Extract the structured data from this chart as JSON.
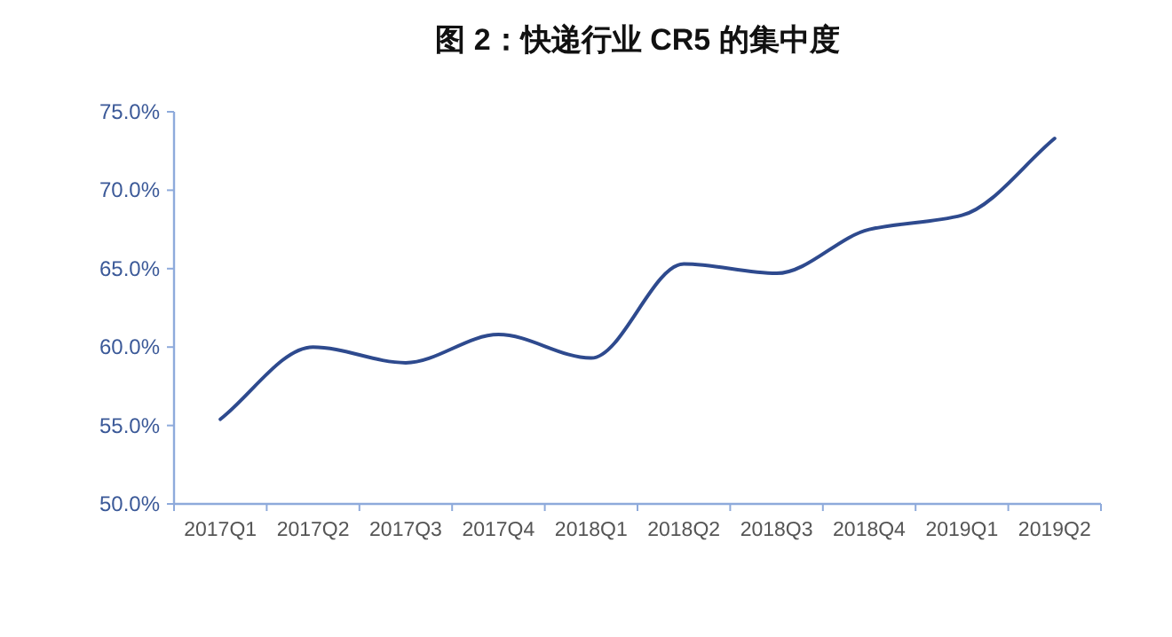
{
  "chart_data": {
    "type": "line",
    "title": "图 2：快递行业 CR5 的集中度",
    "categories": [
      "2017Q1",
      "2017Q2",
      "2017Q3",
      "2017Q4",
      "2018Q1",
      "2018Q2",
      "2018Q3",
      "2018Q4",
      "2019Q1",
      "2019Q2"
    ],
    "series": [
      {
        "color": "#2e4a8e",
        "values": [
          55.4,
          60.0,
          59.0,
          60.8,
          59.3,
          65.3,
          64.7,
          67.5,
          68.4,
          73.3
        ]
      }
    ],
    "ylim": [
      50,
      75
    ],
    "yticks": [
      {
        "value": 50,
        "label": "50.0%"
      },
      {
        "value": 55,
        "label": "55.0%"
      },
      {
        "value": 60,
        "label": "60.0%"
      },
      {
        "value": 65,
        "label": "65.0%"
      },
      {
        "value": 70,
        "label": "70.0%"
      },
      {
        "value": 75,
        "label": "75.0%"
      }
    ],
    "grid": false,
    "marker": "none",
    "line_style": "solid"
  }
}
